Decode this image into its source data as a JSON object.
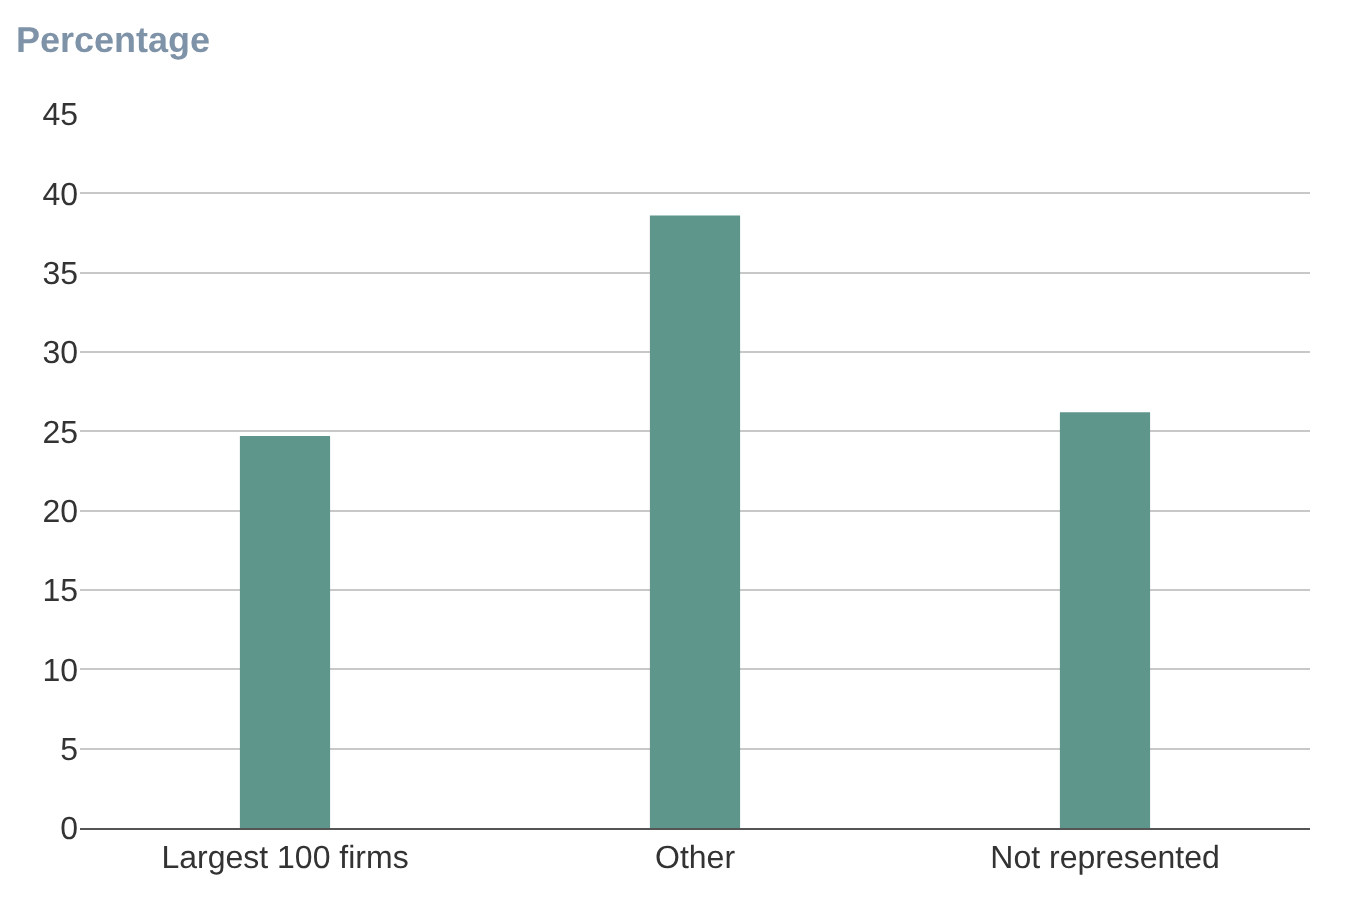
{
  "chart_data": {
    "type": "bar",
    "ylabel": "Percentage",
    "categories": [
      "Largest 100 firms",
      "Other",
      "Not represented"
    ],
    "values": [
      24.7,
      38.6,
      26.2
    ],
    "color": "#5f968b",
    "ylim": [
      0,
      45
    ],
    "yticks": [
      0,
      5,
      10,
      15,
      20,
      25,
      30,
      35,
      40,
      45
    ],
    "grid": "y",
    "legend": false
  }
}
